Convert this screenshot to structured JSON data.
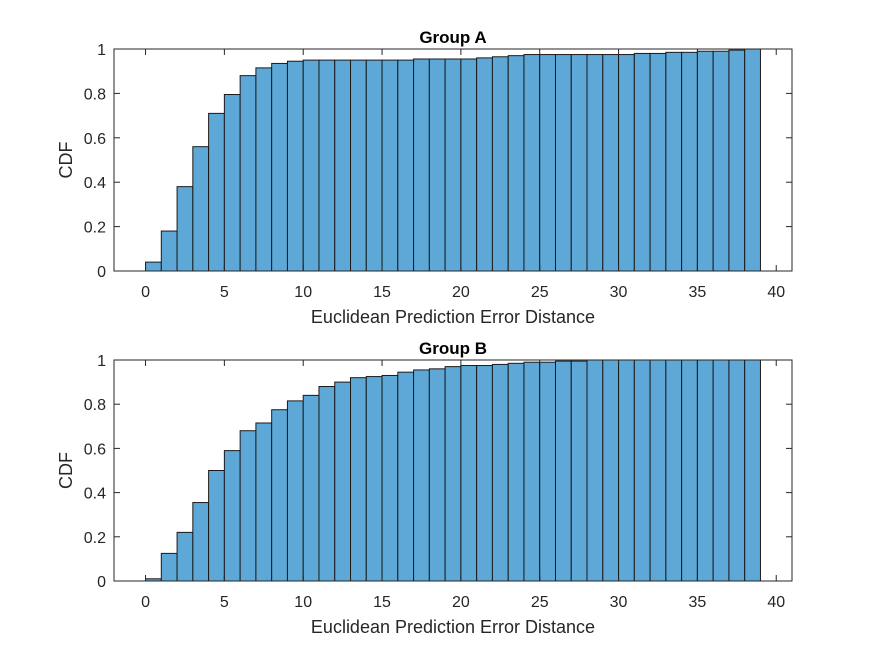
{
  "chart_data": [
    {
      "type": "bar",
      "title": "Group A",
      "xlabel": "Euclidean Prediction Error Distance",
      "ylabel": "CDF",
      "xlim": [
        -2,
        41
      ],
      "ylim": [
        0,
        1
      ],
      "xticks": [
        0,
        5,
        10,
        15,
        20,
        25,
        30,
        35,
        40
      ],
      "xtick_labels": [
        "0",
        "5",
        "10",
        "15",
        "20",
        "25",
        "30",
        "35",
        "40"
      ],
      "yticks": [
        0,
        0.2,
        0.4,
        0.6,
        0.8,
        1
      ],
      "ytick_labels": [
        "0",
        "0.2",
        "0.4",
        "0.6",
        "0.8",
        "1"
      ],
      "bin_width": 1,
      "bin_edges_start": 0,
      "bar_color": "#5ea8d7",
      "grid": false,
      "values": [
        0.04,
        0.18,
        0.38,
        0.56,
        0.71,
        0.795,
        0.88,
        0.915,
        0.935,
        0.945,
        0.95,
        0.95,
        0.95,
        0.95,
        0.95,
        0.95,
        0.95,
        0.955,
        0.955,
        0.955,
        0.955,
        0.96,
        0.965,
        0.97,
        0.975,
        0.975,
        0.975,
        0.975,
        0.975,
        0.975,
        0.975,
        0.98,
        0.98,
        0.985,
        0.985,
        0.99,
        0.99,
        0.995,
        1.0
      ]
    },
    {
      "type": "bar",
      "title": "Group B",
      "xlabel": "Euclidean Prediction Error Distance",
      "ylabel": "CDF",
      "xlim": [
        -2,
        41
      ],
      "ylim": [
        0,
        1
      ],
      "xticks": [
        0,
        5,
        10,
        15,
        20,
        25,
        30,
        35,
        40
      ],
      "xtick_labels": [
        "0",
        "5",
        "10",
        "15",
        "20",
        "25",
        "30",
        "35",
        "40"
      ],
      "yticks": [
        0,
        0.2,
        0.4,
        0.6,
        0.8,
        1
      ],
      "ytick_labels": [
        "0",
        "0.2",
        "0.4",
        "0.6",
        "0.8",
        "1"
      ],
      "bin_width": 1,
      "bin_edges_start": 0,
      "bar_color": "#5ea8d7",
      "grid": false,
      "values": [
        0.01,
        0.125,
        0.22,
        0.355,
        0.5,
        0.59,
        0.68,
        0.715,
        0.775,
        0.815,
        0.84,
        0.88,
        0.9,
        0.92,
        0.925,
        0.93,
        0.945,
        0.955,
        0.96,
        0.97,
        0.975,
        0.975,
        0.98,
        0.985,
        0.99,
        0.99,
        0.995,
        0.995,
        1.0,
        1.0,
        1.0,
        1.0,
        1.0,
        1.0,
        1.0,
        1.0,
        1.0,
        1.0,
        1.0
      ]
    }
  ]
}
